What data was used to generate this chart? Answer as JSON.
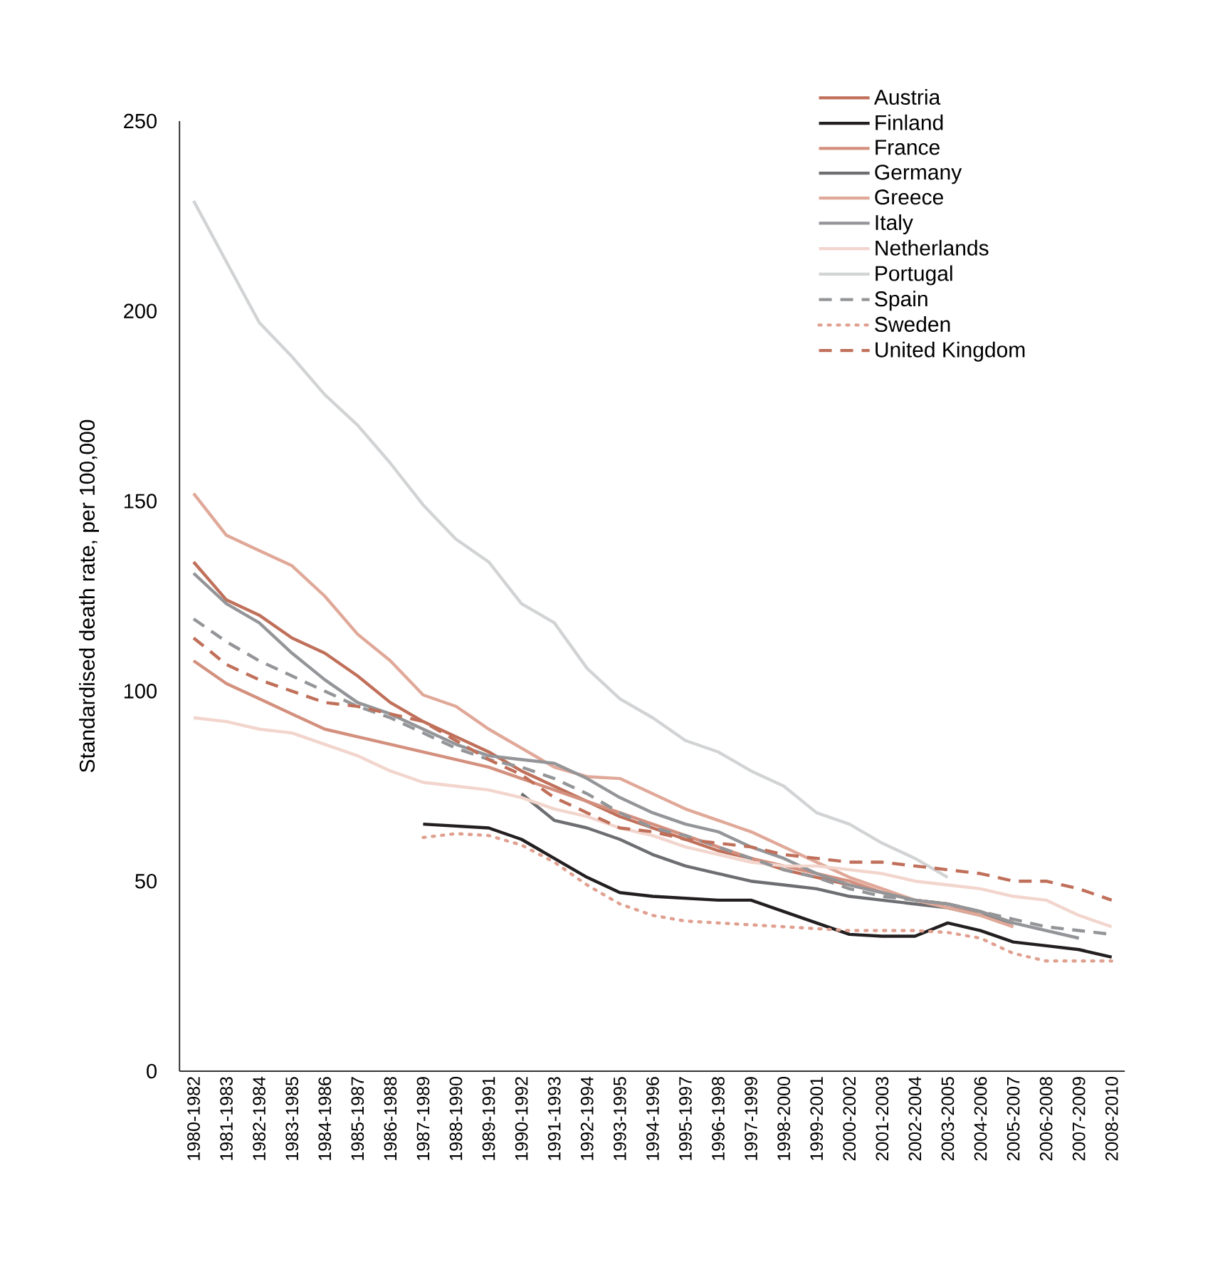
{
  "chart_data": {
    "type": "line",
    "ylabel": "Standardised death rate, per 100,000",
    "categories": [
      "1980-1982",
      "1981-1983",
      "1982-1984",
      "1983-1985",
      "1984-1986",
      "1985-1987",
      "1986-1988",
      "1987-1989",
      "1988-1990",
      "1989-1991",
      "1990-1992",
      "1991-1993",
      "1992-1994",
      "1993-1995",
      "1994-1996",
      "1995-1997",
      "1996-1998",
      "1997-1999",
      "1998-2000",
      "1999-2001",
      "2000-2002",
      "2001-2003",
      "2002-2004",
      "2003-2005",
      "2004-2006",
      "2005-2007",
      "2006-2008",
      "2007-2009",
      "2008-2010"
    ],
    "ylim": [
      0,
      250
    ],
    "yticks": [
      0,
      50,
      100,
      150,
      200,
      250
    ],
    "grid": false,
    "legend": "top right",
    "series": [
      {
        "name": "Austria",
        "color": "#c0705a",
        "line_style": "solid",
        "values": [
          134,
          124,
          120,
          114,
          110,
          104,
          97,
          92,
          88,
          84,
          79,
          75,
          71,
          67,
          64,
          61,
          58,
          56,
          53,
          51,
          49,
          47,
          45,
          44,
          42,
          39,
          null,
          null,
          null
        ]
      },
      {
        "name": "Finland",
        "color": "#231f20",
        "line_style": "solid",
        "values": [
          null,
          null,
          null,
          null,
          null,
          null,
          null,
          65,
          64.5,
          64,
          61,
          56,
          51,
          47,
          46,
          45.5,
          45,
          45,
          42,
          39,
          36,
          35.5,
          35.5,
          39,
          37,
          34,
          33,
          32,
          30
        ]
      },
      {
        "name": "France",
        "color": "#d4907e",
        "line_style": "solid",
        "values": [
          108,
          102,
          98,
          94,
          90,
          88,
          86,
          84,
          82,
          80,
          77,
          74,
          71,
          68,
          65,
          62,
          59,
          56,
          54,
          52,
          50,
          47,
          45,
          44,
          41,
          38,
          null,
          null,
          null
        ]
      },
      {
        "name": "Germany",
        "color": "#6d6e71",
        "line_style": "solid",
        "values": [
          null,
          null,
          null,
          null,
          null,
          null,
          null,
          null,
          null,
          null,
          73,
          66,
          64,
          61,
          57,
          54,
          52,
          50,
          49,
          48,
          46,
          45,
          44,
          43,
          41,
          39,
          null,
          null,
          null
        ]
      },
      {
        "name": "Greece",
        "color": "#e0a898",
        "line_style": "solid",
        "values": [
          152,
          141,
          137,
          133,
          125,
          115,
          108,
          99,
          96,
          90,
          85,
          80,
          77.5,
          77,
          73,
          69,
          66,
          63,
          59,
          55,
          51,
          48,
          45,
          43,
          41,
          38,
          null,
          null,
          null
        ]
      },
      {
        "name": "Italy",
        "color": "#939598",
        "line_style": "solid",
        "values": [
          131,
          123,
          118,
          110,
          103,
          97,
          94,
          90,
          86,
          83,
          82,
          81,
          77,
          72,
          68,
          65,
          63,
          59,
          56,
          52,
          49,
          47,
          45,
          44,
          42,
          39,
          37,
          35,
          null
        ]
      },
      {
        "name": "Netherlands",
        "color": "#f2d5cd",
        "line_style": "solid",
        "values": [
          93,
          92,
          90,
          89,
          86,
          83,
          79,
          76,
          75,
          74,
          72,
          69,
          67,
          64,
          62,
          59,
          57,
          55,
          54,
          54,
          53,
          52,
          50,
          49,
          48,
          46,
          45,
          41,
          38
        ]
      },
      {
        "name": "Portugal",
        "color": "#d1d3d4",
        "line_style": "solid",
        "values": [
          229,
          213,
          197,
          188,
          178,
          170,
          160,
          149,
          140,
          134,
          123,
          118,
          106,
          98,
          93,
          87,
          84,
          79,
          75,
          68,
          65,
          60,
          56,
          51,
          null,
          null,
          null,
          null,
          null
        ]
      },
      {
        "name": "Spain",
        "color": "#939598",
        "line_style": "dashed",
        "values": [
          119,
          113,
          108,
          104,
          100,
          96,
          93,
          89,
          85,
          82,
          80,
          77,
          73,
          68,
          64,
          62,
          59,
          56,
          53,
          51,
          48,
          46,
          45,
          44,
          42,
          40,
          38,
          37,
          36
        ]
      },
      {
        "name": "Sweden",
        "color": "#e0a090",
        "line_style": "dotted",
        "values": [
          null,
          null,
          null,
          null,
          null,
          null,
          null,
          61.5,
          62.5,
          62,
          59.5,
          55,
          49,
          44,
          41,
          39.5,
          39,
          38.5,
          38,
          37.5,
          37,
          37,
          37,
          36.5,
          35,
          31,
          29,
          29,
          29
        ]
      },
      {
        "name": "United Kingdom",
        "color": "#c0705a",
        "line_style": "dashed",
        "values": [
          114,
          107,
          103,
          100,
          97,
          96,
          94,
          92,
          87,
          82,
          78,
          72,
          68,
          64,
          63,
          61,
          60,
          59,
          57,
          56,
          55,
          55,
          54,
          53,
          52,
          50,
          50,
          48,
          45
        ]
      }
    ]
  }
}
